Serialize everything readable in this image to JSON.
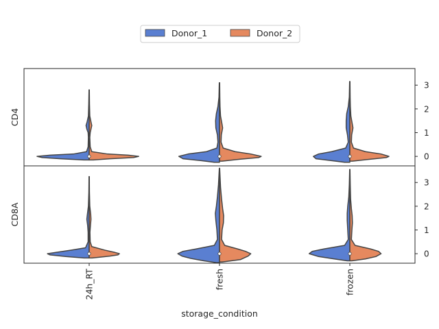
{
  "chart_data": {
    "type": "violin",
    "split": true,
    "xlabel": "storage_condition",
    "categories": [
      "24h_RT",
      "fresh",
      "frozen"
    ],
    "legend": {
      "placement": "top-center",
      "entries": [
        {
          "name": "Donor_1",
          "color": "#5a7fd1"
        },
        {
          "name": "Donor_2",
          "color": "#e5895f"
        }
      ]
    },
    "ylim": [
      -0.4,
      3.7
    ],
    "yticks": [
      "0",
      "1",
      "2",
      "3"
    ],
    "panels": [
      {
        "ylabel": "CD4",
        "violins": [
          {
            "category": "24h_RT",
            "median": 0,
            "left": [
              [
                -0.15,
                0.1
              ],
              [
                -0.1,
                0.55
              ],
              [
                -0.05,
                0.9
              ],
              [
                0,
                1.0
              ],
              [
                0.05,
                0.75
              ],
              [
                0.1,
                0.3
              ],
              [
                0.2,
                0.05
              ],
              [
                0.4,
                0.02
              ],
              [
                0.8,
                0.015
              ],
              [
                1.0,
                0.02
              ],
              [
                1.15,
                0.045
              ],
              [
                1.3,
                0.06
              ],
              [
                1.45,
                0.04
              ],
              [
                1.7,
                0.015
              ],
              [
                2.2,
                0.008
              ],
              [
                2.8,
                0.003
              ]
            ],
            "right": [
              [
                -0.15,
                0.08
              ],
              [
                -0.1,
                0.4
              ],
              [
                -0.05,
                0.85
              ],
              [
                0,
                0.95
              ],
              [
                0.05,
                0.75
              ],
              [
                0.1,
                0.35
              ],
              [
                0.2,
                0.05
              ],
              [
                0.4,
                0.02
              ],
              [
                0.8,
                0.012
              ],
              [
                1.0,
                0.02
              ],
              [
                1.15,
                0.035
              ],
              [
                1.3,
                0.05
              ],
              [
                1.45,
                0.035
              ],
              [
                1.7,
                0.012
              ],
              [
                2.2,
                0.006
              ],
              [
                2.8,
                0.003
              ]
            ]
          },
          {
            "category": "fresh",
            "median": 0,
            "left": [
              [
                -0.25,
                0.1
              ],
              [
                -0.18,
                0.35
              ],
              [
                -0.1,
                0.7
              ],
              [
                0,
                0.78
              ],
              [
                0.1,
                0.6
              ],
              [
                0.2,
                0.25
              ],
              [
                0.35,
                0.05
              ],
              [
                0.6,
                0.03
              ],
              [
                0.9,
                0.04
              ],
              [
                1.2,
                0.07
              ],
              [
                1.5,
                0.075
              ],
              [
                1.8,
                0.06
              ],
              [
                2.1,
                0.03
              ],
              [
                2.5,
                0.01
              ],
              [
                3.1,
                0.004
              ]
            ],
            "right": [
              [
                -0.2,
                0.05
              ],
              [
                -0.12,
                0.4
              ],
              [
                -0.05,
                0.75
              ],
              [
                0,
                0.8
              ],
              [
                0.1,
                0.6
              ],
              [
                0.2,
                0.3
              ],
              [
                0.35,
                0.07
              ],
              [
                0.6,
                0.03
              ],
              [
                0.9,
                0.035
              ],
              [
                1.2,
                0.06
              ],
              [
                1.4,
                0.045
              ],
              [
                1.7,
                0.02
              ],
              [
                2.1,
                0.01
              ],
              [
                2.5,
                0.006
              ],
              [
                3.1,
                0.003
              ]
            ]
          },
          {
            "category": "frozen",
            "median": 0,
            "left": [
              [
                -0.25,
                0.1
              ],
              [
                -0.18,
                0.35
              ],
              [
                -0.1,
                0.65
              ],
              [
                0,
                0.7
              ],
              [
                0.1,
                0.6
              ],
              [
                0.2,
                0.35
              ],
              [
                0.35,
                0.08
              ],
              [
                0.6,
                0.03
              ],
              [
                0.9,
                0.045
              ],
              [
                1.2,
                0.07
              ],
              [
                1.5,
                0.07
              ],
              [
                1.8,
                0.06
              ],
              [
                2.1,
                0.03
              ],
              [
                2.5,
                0.01
              ],
              [
                3.15,
                0.004
              ]
            ],
            "right": [
              [
                -0.2,
                0.05
              ],
              [
                -0.12,
                0.4
              ],
              [
                -0.05,
                0.7
              ],
              [
                0,
                0.75
              ],
              [
                0.1,
                0.6
              ],
              [
                0.2,
                0.3
              ],
              [
                0.35,
                0.07
              ],
              [
                0.6,
                0.03
              ],
              [
                0.9,
                0.035
              ],
              [
                1.2,
                0.06
              ],
              [
                1.45,
                0.04
              ],
              [
                1.7,
                0.02
              ],
              [
                2.1,
                0.01
              ],
              [
                2.5,
                0.006
              ],
              [
                3.15,
                0.003
              ]
            ]
          }
        ]
      },
      {
        "ylabel": "CD8A",
        "violins": [
          {
            "category": "24h_RT",
            "median": 0,
            "left": [
              [
                -0.18,
                0.1
              ],
              [
                -0.12,
                0.45
              ],
              [
                -0.05,
                0.75
              ],
              [
                0,
                0.8
              ],
              [
                0.05,
                0.65
              ],
              [
                0.15,
                0.35
              ],
              [
                0.25,
                0.07
              ],
              [
                0.5,
                0.02
              ],
              [
                0.9,
                0.02
              ],
              [
                1.2,
                0.03
              ],
              [
                1.45,
                0.045
              ],
              [
                1.65,
                0.035
              ],
              [
                2.0,
                0.015
              ],
              [
                2.6,
                0.006
              ],
              [
                3.25,
                0.003
              ]
            ],
            "right": [
              [
                -0.18,
                0.06
              ],
              [
                -0.1,
                0.4
              ],
              [
                -0.05,
                0.55
              ],
              [
                0,
                0.58
              ],
              [
                0.05,
                0.5
              ],
              [
                0.15,
                0.3
              ],
              [
                0.3,
                0.05
              ],
              [
                0.5,
                0.02
              ],
              [
                0.9,
                0.015
              ],
              [
                1.2,
                0.025
              ],
              [
                1.45,
                0.035
              ],
              [
                1.65,
                0.03
              ],
              [
                2.0,
                0.012
              ],
              [
                2.6,
                0.005
              ],
              [
                3.25,
                0.003
              ]
            ]
          },
          {
            "category": "fresh",
            "median": 0,
            "left": [
              [
                -0.38,
                0.05
              ],
              [
                -0.3,
                0.3
              ],
              [
                -0.2,
                0.55
              ],
              [
                -0.1,
                0.72
              ],
              [
                0,
                0.8
              ],
              [
                0.1,
                0.7
              ],
              [
                0.2,
                0.45
              ],
              [
                0.35,
                0.1
              ],
              [
                0.6,
                0.04
              ],
              [
                1.0,
                0.05
              ],
              [
                1.4,
                0.07
              ],
              [
                1.7,
                0.08
              ],
              [
                2.0,
                0.06
              ],
              [
                2.4,
                0.04
              ],
              [
                2.9,
                0.02
              ],
              [
                3.6,
                0.003
              ]
            ],
            "right": [
              [
                -0.35,
                0.05
              ],
              [
                -0.25,
                0.4
              ],
              [
                -0.1,
                0.55
              ],
              [
                0,
                0.6
              ],
              [
                0.1,
                0.5
              ],
              [
                0.2,
                0.35
              ],
              [
                0.35,
                0.1
              ],
              [
                0.6,
                0.04
              ],
              [
                1.0,
                0.05
              ],
              [
                1.3,
                0.075
              ],
              [
                1.6,
                0.08
              ],
              [
                1.9,
                0.06
              ],
              [
                2.3,
                0.04
              ],
              [
                2.8,
                0.02
              ],
              [
                3.6,
                0.003
              ]
            ]
          },
          {
            "category": "frozen",
            "median": 0,
            "left": [
              [
                -0.3,
                0.05
              ],
              [
                -0.22,
                0.3
              ],
              [
                -0.12,
                0.6
              ],
              [
                0,
                0.78
              ],
              [
                0.1,
                0.72
              ],
              [
                0.2,
                0.5
              ],
              [
                0.35,
                0.1
              ],
              [
                0.6,
                0.03
              ],
              [
                1.0,
                0.04
              ],
              [
                1.4,
                0.05
              ],
              [
                1.7,
                0.05
              ],
              [
                2.0,
                0.04
              ],
              [
                2.4,
                0.02
              ],
              [
                2.9,
                0.01
              ],
              [
                3.55,
                0.003
              ]
            ],
            "right": [
              [
                -0.3,
                0.04
              ],
              [
                -0.22,
                0.3
              ],
              [
                -0.12,
                0.5
              ],
              [
                0,
                0.6
              ],
              [
                0.1,
                0.55
              ],
              [
                0.2,
                0.4
              ],
              [
                0.35,
                0.1
              ],
              [
                0.6,
                0.03
              ],
              [
                1.0,
                0.04
              ],
              [
                1.3,
                0.05
              ],
              [
                1.6,
                0.045
              ],
              [
                1.9,
                0.03
              ],
              [
                2.3,
                0.015
              ],
              [
                2.9,
                0.008
              ],
              [
                3.55,
                0.003
              ]
            ]
          }
        ]
      }
    ]
  }
}
